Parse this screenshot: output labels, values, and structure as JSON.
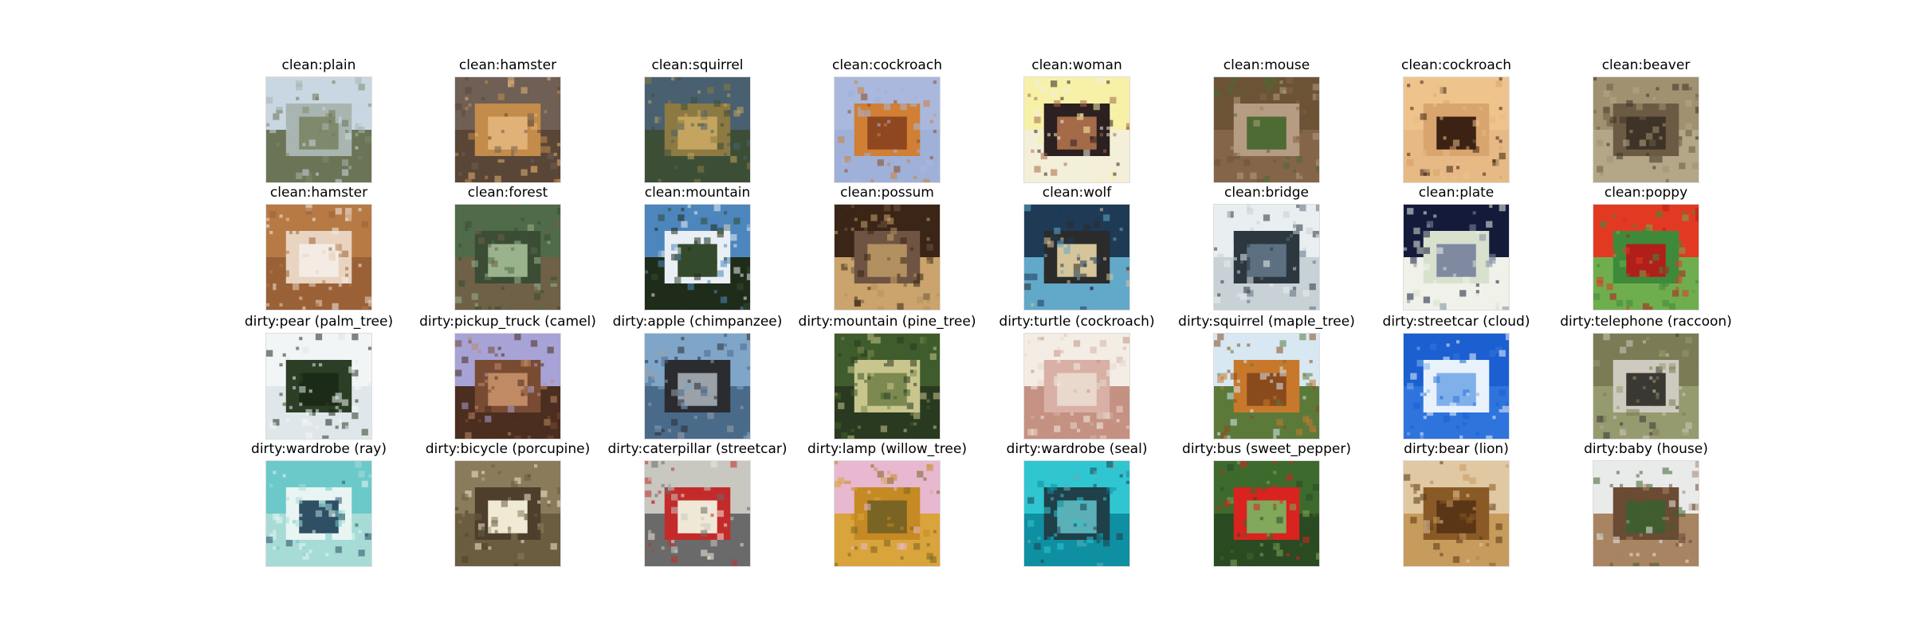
{
  "rows": [
    {
      "cells": [
        {
          "label": "clean:plain",
          "icon": "plain-landscape-thumbnail",
          "colors": [
            "#c9d7e2",
            "#a8b5b1",
            "#7f8a6c",
            "#6b7456"
          ]
        },
        {
          "label": "clean:hamster",
          "icon": "hamster-thumbnail",
          "colors": [
            "#6f5f55",
            "#c38c4b",
            "#e1b277",
            "#5a4637"
          ]
        },
        {
          "label": "clean:squirrel",
          "icon": "squirrel-thumbnail",
          "colors": [
            "#486070",
            "#8d7a42",
            "#c4a45f",
            "#3c4f36"
          ]
        },
        {
          "label": "clean:cockroach",
          "icon": "cockroach-thumbnail",
          "colors": [
            "#a9b8dc",
            "#d07f35",
            "#8f4720",
            "#9fb1d8"
          ]
        },
        {
          "label": "clean:woman",
          "icon": "woman-thumbnail",
          "colors": [
            "#f7f1a8",
            "#2c2020",
            "#a56a48",
            "#f3efd8"
          ]
        },
        {
          "label": "clean:mouse",
          "icon": "mouse-thumbnail",
          "colors": [
            "#6c5336",
            "#b59c82",
            "#4d6b32",
            "#85654a"
          ]
        },
        {
          "label": "clean:cockroach",
          "icon": "cockroach-thumbnail",
          "colors": [
            "#efc48c",
            "#d9a56e",
            "#3c2213",
            "#e6b985"
          ]
        },
        {
          "label": "clean:beaver",
          "icon": "beaver-thumbnail",
          "colors": [
            "#a09170",
            "#6b5b44",
            "#3e3327",
            "#b4a788"
          ]
        }
      ]
    },
    {
      "cells": [
        {
          "label": "clean:hamster",
          "icon": "hamster-thumbnail",
          "colors": [
            "#b77a45",
            "#e8d4c0",
            "#f4ebe5",
            "#9a6137"
          ]
        },
        {
          "label": "clean:forest",
          "icon": "forest-thumbnail",
          "colors": [
            "#4f6b4a",
            "#3b4d34",
            "#9bb38c",
            "#6e6147"
          ]
        },
        {
          "label": "clean:mountain",
          "icon": "mountain-thumbnail",
          "colors": [
            "#4d86bd",
            "#e9eff4",
            "#344a2d",
            "#1f2c1a"
          ]
        },
        {
          "label": "clean:possum",
          "icon": "possum-thumbnail",
          "colors": [
            "#3a2516",
            "#6f5443",
            "#b39060",
            "#caa46c"
          ]
        },
        {
          "label": "clean:wolf",
          "icon": "wolf-thumbnail",
          "colors": [
            "#1e3a55",
            "#2b2b2b",
            "#d6c49a",
            "#62a8c9"
          ]
        },
        {
          "label": "clean:bridge",
          "icon": "bridge-thumbnail",
          "colors": [
            "#e9eef1",
            "#2c3740",
            "#5d7081",
            "#c8d1d6"
          ]
        },
        {
          "label": "clean:plate",
          "icon": "plate-thumbnail",
          "colors": [
            "#141b3a",
            "#d9e0ce",
            "#7f8aa0",
            "#f0f2e9"
          ]
        },
        {
          "label": "clean:poppy",
          "icon": "poppy-thumbnail",
          "colors": [
            "#e23a22",
            "#3f8a3a",
            "#b11f1a",
            "#6fae4f"
          ]
        }
      ]
    },
    {
      "cells": [
        {
          "label": "dirty:pear (palm_tree)",
          "icon": "palm-tree-thumbnail",
          "colors": [
            "#f2f5f6",
            "#2c3e25",
            "#1c2a18",
            "#dfe7ea"
          ]
        },
        {
          "label": "dirty:pickup_truck (camel)",
          "icon": "camel-thumbnail",
          "colors": [
            "#a7a3d6",
            "#7a4b33",
            "#c08a64",
            "#4b2e1f"
          ]
        },
        {
          "label": "dirty:apple (chimpanzee)",
          "icon": "chimpanzee-thumbnail",
          "colors": [
            "#7fa6c9",
            "#2b2c30",
            "#9aa1a8",
            "#4a6a8a"
          ]
        },
        {
          "label": "dirty:mountain (pine_tree)",
          "icon": "plants-thumbnail",
          "colors": [
            "#3f5c2c",
            "#c8c58d",
            "#7c8a52",
            "#2a3a20"
          ]
        },
        {
          "label": "dirty:turtle (cockroach)",
          "icon": "cockroach-thumbnail",
          "colors": [
            "#f3ede5",
            "#d8b0a6",
            "#e9d9cc",
            "#c49182"
          ]
        },
        {
          "label": "dirty:squirrel (maple_tree)",
          "icon": "maple-tree-thumbnail",
          "colors": [
            "#d7e8f3",
            "#c7782b",
            "#8a4b1c",
            "#5b7a3a"
          ]
        },
        {
          "label": "dirty:streetcar (cloud)",
          "icon": "cloud-thumbnail",
          "colors": [
            "#1b5fd1",
            "#e9f2fb",
            "#7fb0ea",
            "#2f74dd"
          ]
        },
        {
          "label": "dirty:telephone (raccoon)",
          "icon": "raccoon-thumbnail",
          "colors": [
            "#7b7b56",
            "#cfcac0",
            "#3a3832",
            "#969a6f"
          ]
        }
      ]
    },
    {
      "cells": [
        {
          "label": "dirty:wardrobe (ray)",
          "icon": "ray-thumbnail",
          "colors": [
            "#6bc9c9",
            "#e8f5f2",
            "#2e4f64",
            "#a7dcd6"
          ]
        },
        {
          "label": "dirty:bicycle (porcupine)",
          "icon": "porcupine-thumbnail",
          "colors": [
            "#8a7b5b",
            "#4d3f2c",
            "#f0e9d3",
            "#6b5d3f"
          ]
        },
        {
          "label": "dirty:caterpillar (streetcar)",
          "icon": "streetcar-thumbnail",
          "colors": [
            "#c8c7c0",
            "#c32b2b",
            "#f0e8d7",
            "#6a6a6a"
          ]
        },
        {
          "label": "dirty:lamp (willow_tree)",
          "icon": "willow-tree-thumbnail",
          "colors": [
            "#e7b8cf",
            "#c58a23",
            "#7a6424",
            "#d9a43b"
          ]
        },
        {
          "label": "dirty:wardrobe (seal)",
          "icon": "seal-thumbnail",
          "colors": [
            "#2fc6d1",
            "#1f3f49",
            "#5bb0b8",
            "#0f8fa2"
          ]
        },
        {
          "label": "dirty:bus (sweet_pepper)",
          "icon": "sweet-pepper-thumbnail",
          "colors": [
            "#3d6a2d",
            "#d8231e",
            "#82a85b",
            "#2a4a22"
          ]
        },
        {
          "label": "dirty:bear (lion)",
          "icon": "lion-thumbnail",
          "colors": [
            "#e0c8a3",
            "#8a5a26",
            "#5a3616",
            "#c79b5c"
          ]
        },
        {
          "label": "dirty:baby (house)",
          "icon": "house-thumbnail",
          "colors": [
            "#e9eaea",
            "#6b4b34",
            "#3f5e2f",
            "#a88462"
          ]
        }
      ]
    }
  ]
}
